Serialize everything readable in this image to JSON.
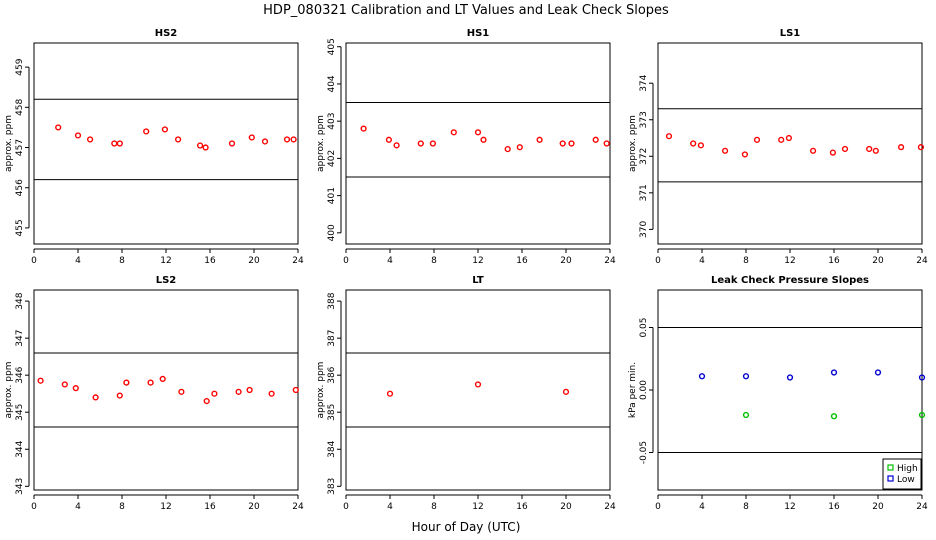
{
  "figure": {
    "title": "HDP_080321  Calibration and LT Values and Leak Check Slopes",
    "xlabel": "Hour of Day (UTC)"
  },
  "chart_data": [
    {
      "type": "scatter",
      "title": "HS2",
      "ylabel": "approx. ppm",
      "xlim": [
        0,
        24
      ],
      "ylim": [
        454.6,
        459.6
      ],
      "xticks": [
        0,
        4,
        8,
        12,
        16,
        20,
        24
      ],
      "yticks": [
        455,
        456,
        457,
        458,
        459
      ],
      "hlines": [
        458.2,
        456.2
      ],
      "marker_color": "#ff0000",
      "series": [
        {
          "x": [
            2.2,
            4.0,
            5.1,
            7.3,
            7.8,
            10.2,
            11.9,
            13.1,
            15.1,
            15.6,
            18.0,
            19.8,
            21.0,
            23.0,
            23.6
          ],
          "y": [
            457.5,
            457.3,
            457.2,
            457.1,
            457.1,
            457.4,
            457.45,
            457.2,
            457.05,
            457.0,
            457.1,
            457.25,
            457.15,
            457.2,
            457.2
          ]
        }
      ]
    },
    {
      "type": "scatter",
      "title": "HS1",
      "ylabel": "approx. ppm",
      "xlim": [
        0,
        24
      ],
      "ylim": [
        399.7,
        405.1
      ],
      "xticks": [
        0,
        4,
        8,
        12,
        16,
        20,
        24
      ],
      "yticks": [
        400,
        401,
        402,
        403,
        404,
        405
      ],
      "hlines": [
        403.5,
        401.5
      ],
      "marker_color": "#ff0000",
      "series": [
        {
          "x": [
            1.6,
            3.9,
            4.6,
            6.8,
            7.9,
            9.8,
            12.0,
            12.5,
            14.7,
            15.8,
            17.6,
            19.7,
            20.5,
            22.7,
            23.7
          ],
          "y": [
            402.8,
            402.5,
            402.35,
            402.4,
            402.4,
            402.7,
            402.7,
            402.5,
            402.25,
            402.3,
            402.5,
            402.4,
            402.4,
            402.5,
            402.4
          ]
        }
      ]
    },
    {
      "type": "scatter",
      "title": "LS1",
      "ylabel": "approx. ppm",
      "xlim": [
        0,
        24
      ],
      "ylim": [
        369.6,
        375.1
      ],
      "xticks": [
        0,
        4,
        8,
        12,
        16,
        20,
        24
      ],
      "yticks": [
        370,
        371,
        372,
        373,
        374
      ],
      "hlines": [
        373.3,
        371.3
      ],
      "marker_color": "#ff0000",
      "series": [
        {
          "x": [
            1.0,
            3.2,
            3.9,
            6.1,
            7.9,
            9.0,
            11.2,
            11.9,
            14.1,
            15.9,
            17.0,
            19.2,
            19.8,
            22.1,
            23.9
          ],
          "y": [
            372.55,
            372.35,
            372.3,
            372.15,
            372.05,
            372.45,
            372.45,
            372.5,
            372.15,
            372.1,
            372.2,
            372.2,
            372.15,
            372.25,
            372.25
          ]
        }
      ]
    },
    {
      "type": "scatter",
      "title": "LS2",
      "ylabel": "approx. ppm",
      "xlim": [
        0,
        24
      ],
      "ylim": [
        342.9,
        348.3
      ],
      "xticks": [
        0,
        4,
        8,
        12,
        16,
        20,
        24
      ],
      "yticks": [
        343,
        344,
        345,
        346,
        347,
        348
      ],
      "hlines": [
        346.6,
        344.6
      ],
      "marker_color": "#ff0000",
      "series": [
        {
          "x": [
            0.6,
            2.8,
            3.8,
            5.6,
            7.8,
            8.4,
            10.6,
            11.7,
            13.4,
            15.7,
            16.4,
            18.6,
            19.6,
            21.6,
            23.8
          ],
          "y": [
            345.85,
            345.75,
            345.65,
            345.4,
            345.45,
            345.8,
            345.8,
            345.9,
            345.55,
            345.3,
            345.5,
            345.55,
            345.6,
            345.5,
            345.6
          ]
        }
      ]
    },
    {
      "type": "scatter",
      "title": "LT",
      "ylabel": "approx. ppm",
      "xlim": [
        0,
        24
      ],
      "ylim": [
        382.9,
        388.3
      ],
      "xticks": [
        0,
        4,
        8,
        12,
        16,
        20,
        24
      ],
      "yticks": [
        383,
        384,
        385,
        386,
        387,
        388
      ],
      "hlines": [
        386.6,
        384.6
      ],
      "marker_color": "#ff0000",
      "series": [
        {
          "x": [
            4.0,
            12.0,
            20.0
          ],
          "y": [
            385.5,
            385.75,
            385.55
          ]
        }
      ]
    },
    {
      "type": "scatter",
      "title": "Leak Check Pressure Slopes",
      "ylabel": "kPa per min.",
      "xlim": [
        0,
        24
      ],
      "ylim": [
        -0.08,
        0.08
      ],
      "xticks": [
        0,
        4,
        8,
        12,
        16,
        20,
        24
      ],
      "yticks": [
        -0.05,
        0.0,
        0.05
      ],
      "ytick_labels": [
        "-0.05",
        "0.00",
        "0.05"
      ],
      "hlines": [
        0.05,
        -0.05
      ],
      "series": [
        {
          "name": "High",
          "color": "#00c000",
          "x": [
            8.0,
            16.0,
            24.0
          ],
          "y": [
            -0.02,
            -0.021,
            -0.02
          ]
        },
        {
          "name": "Low",
          "color": "#0000d0",
          "x": [
            4.0,
            8.0,
            12.0,
            16.0,
            20.0,
            24.0
          ],
          "y": [
            0.011,
            0.011,
            0.01,
            0.014,
            0.014,
            0.01
          ]
        }
      ],
      "legend": "bottom-right"
    }
  ]
}
